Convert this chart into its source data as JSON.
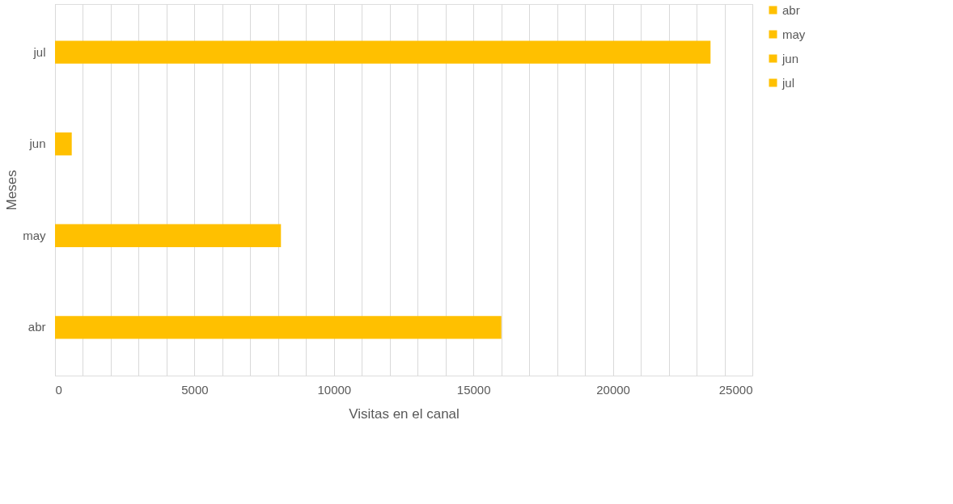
{
  "chart_data": {
    "type": "bar",
    "orientation": "horizontal",
    "xlabel": "Visitas en el canal",
    "ylabel": "Meses",
    "categories": [
      "jul",
      "jun",
      "may",
      "abr"
    ],
    "series": [
      {
        "name": "abr",
        "color": "#ffc000",
        "values": [
          null,
          null,
          null,
          16000
        ]
      },
      {
        "name": "may",
        "color": "#ffc000",
        "values": [
          null,
          null,
          8100,
          null
        ]
      },
      {
        "name": "jun",
        "color": "#ffc000",
        "values": [
          null,
          600,
          null,
          null
        ]
      },
      {
        "name": "jul",
        "color": "#ffc000",
        "values": [
          23500,
          null,
          null,
          null
        ]
      }
    ],
    "xlim": [
      0,
      25000
    ],
    "xticks": [
      0,
      {
        "value": 1000,
        "label": null
      },
      {
        "value": 2000,
        "label": null
      },
      {
        "value": 3000,
        "label": null
      },
      {
        "value": 4000,
        "label": null
      },
      5000,
      {
        "value": 6000,
        "label": null
      },
      {
        "value": 7000,
        "label": null
      },
      {
        "value": 8000,
        "label": null
      },
      {
        "value": 9000,
        "label": null
      },
      10000,
      {
        "value": 11000,
        "label": null
      },
      {
        "value": 12000,
        "label": null
      },
      {
        "value": 13000,
        "label": null
      },
      {
        "value": 14000,
        "label": null
      },
      15000,
      {
        "value": 16000,
        "label": null
      },
      {
        "value": 17000,
        "label": null
      },
      {
        "value": 18000,
        "label": null
      },
      {
        "value": 19000,
        "label": null
      },
      20000,
      {
        "value": 21000,
        "label": null
      },
      {
        "value": 22000,
        "label": null
      },
      {
        "value": 23000,
        "label": null
      },
      {
        "value": 24000,
        "label": null
      },
      25000
    ],
    "grid": "x",
    "legend": "right"
  }
}
